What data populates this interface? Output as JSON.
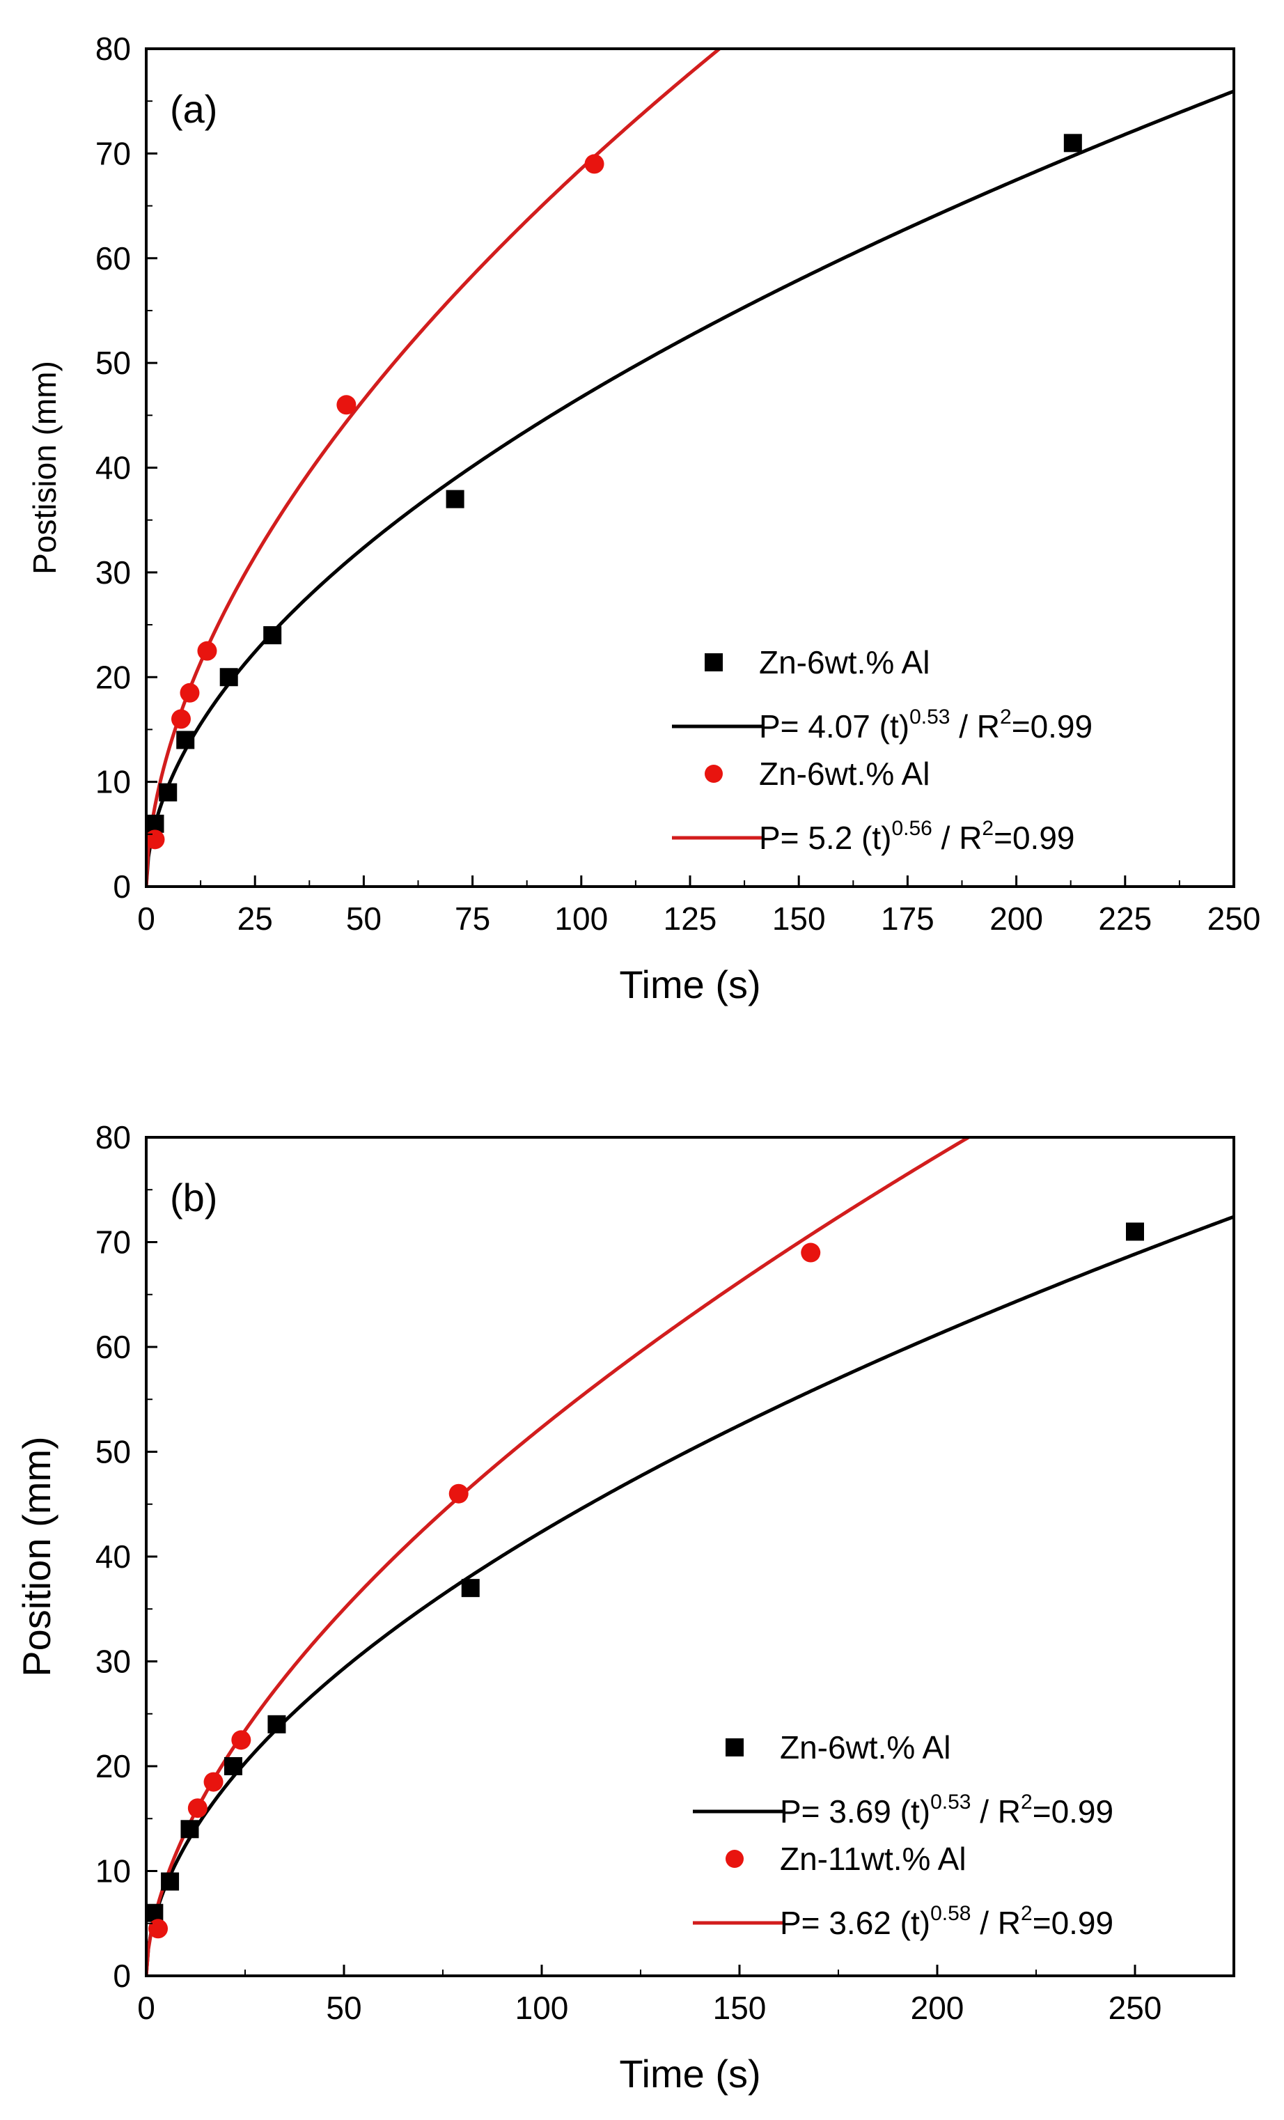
{
  "chart_data": [
    {
      "type": "scatter",
      "panel_label": "(a)",
      "xlabel": "Time (s)",
      "ylabel": "Postision (mm)",
      "xlim": [
        0,
        250
      ],
      "ylim": [
        0,
        80
      ],
      "xticks": [
        0,
        25,
        50,
        75,
        100,
        125,
        150,
        175,
        200,
        225,
        250
      ],
      "yticks": [
        0,
        10,
        20,
        30,
        40,
        50,
        60,
        70,
        80
      ],
      "grid": false,
      "legend_position": "bottom-right",
      "series": [
        {
          "name": "Zn-6wt.% Al",
          "kind": "points",
          "marker": "square",
          "color": "#000000",
          "x": [
            2,
            5,
            9,
            19,
            29,
            71,
            213
          ],
          "y": [
            6,
            9,
            14,
            20,
            24,
            37,
            71
          ]
        },
        {
          "name": "Zn-6wt.% Al fit",
          "kind": "fit",
          "color": "#000000",
          "coef": 4.07,
          "exponent": 0.53,
          "legend_parts": {
            "prefix": "P= 4.07 (t)",
            "exp": "0.53",
            "mid": " / R",
            "r2sup": "2",
            "suffix": "=0.99"
          }
        },
        {
          "name": "Zn-6wt.% Al",
          "kind": "points",
          "marker": "circle",
          "color": "#e8140f",
          "x": [
            2,
            8,
            10,
            14,
            46,
            103
          ],
          "y": [
            4.5,
            16,
            18.5,
            22.5,
            46,
            69
          ]
        },
        {
          "name": "Zn-6wt.% Al fit (red)",
          "kind": "fit",
          "color": "#d21d1d",
          "coef": 5.2,
          "exponent": 0.56,
          "legend_parts": {
            "prefix": "P= 5.2 (t)",
            "exp": "0.56",
            "mid": " / R",
            "r2sup": "2",
            "suffix": "=0.99"
          }
        }
      ]
    },
    {
      "type": "scatter",
      "panel_label": "(b)",
      "xlabel": "Time (s)",
      "ylabel": "Position (mm)",
      "xlim": [
        0,
        275
      ],
      "ylim": [
        0,
        80
      ],
      "xticks": [
        0,
        50,
        100,
        150,
        200,
        250
      ],
      "yticks": [
        0,
        10,
        20,
        30,
        40,
        50,
        60,
        70,
        80
      ],
      "grid": false,
      "legend_position": "bottom-right",
      "series": [
        {
          "name": "Zn-6wt.% Al",
          "kind": "points",
          "marker": "square",
          "color": "#000000",
          "x": [
            2,
            6,
            11,
            22,
            33,
            82,
            250
          ],
          "y": [
            6,
            9,
            14,
            20,
            24,
            37,
            71
          ]
        },
        {
          "name": "Zn-6wt.% Al fit",
          "kind": "fit",
          "color": "#000000",
          "coef": 3.69,
          "exponent": 0.53,
          "legend_parts": {
            "prefix": "P= 3.69 (t)",
            "exp": "0.53",
            "mid": " / R",
            "r2sup": "2",
            "suffix": "=0.99"
          }
        },
        {
          "name": "Zn-11wt.% Al",
          "kind": "points",
          "marker": "circle",
          "color": "#e8140f",
          "x": [
            3,
            13,
            17,
            24,
            79,
            168
          ],
          "y": [
            4.5,
            16,
            18.5,
            22.5,
            46,
            69
          ]
        },
        {
          "name": "Zn-11wt.% Al fit",
          "kind": "fit",
          "color": "#d21d1d",
          "coef": 3.62,
          "exponent": 0.58,
          "legend_parts": {
            "prefix": "P= 3.62 (t)",
            "exp": "0.58",
            "mid": " / R",
            "r2sup": "2",
            "suffix": "=0.99"
          }
        }
      ]
    }
  ]
}
